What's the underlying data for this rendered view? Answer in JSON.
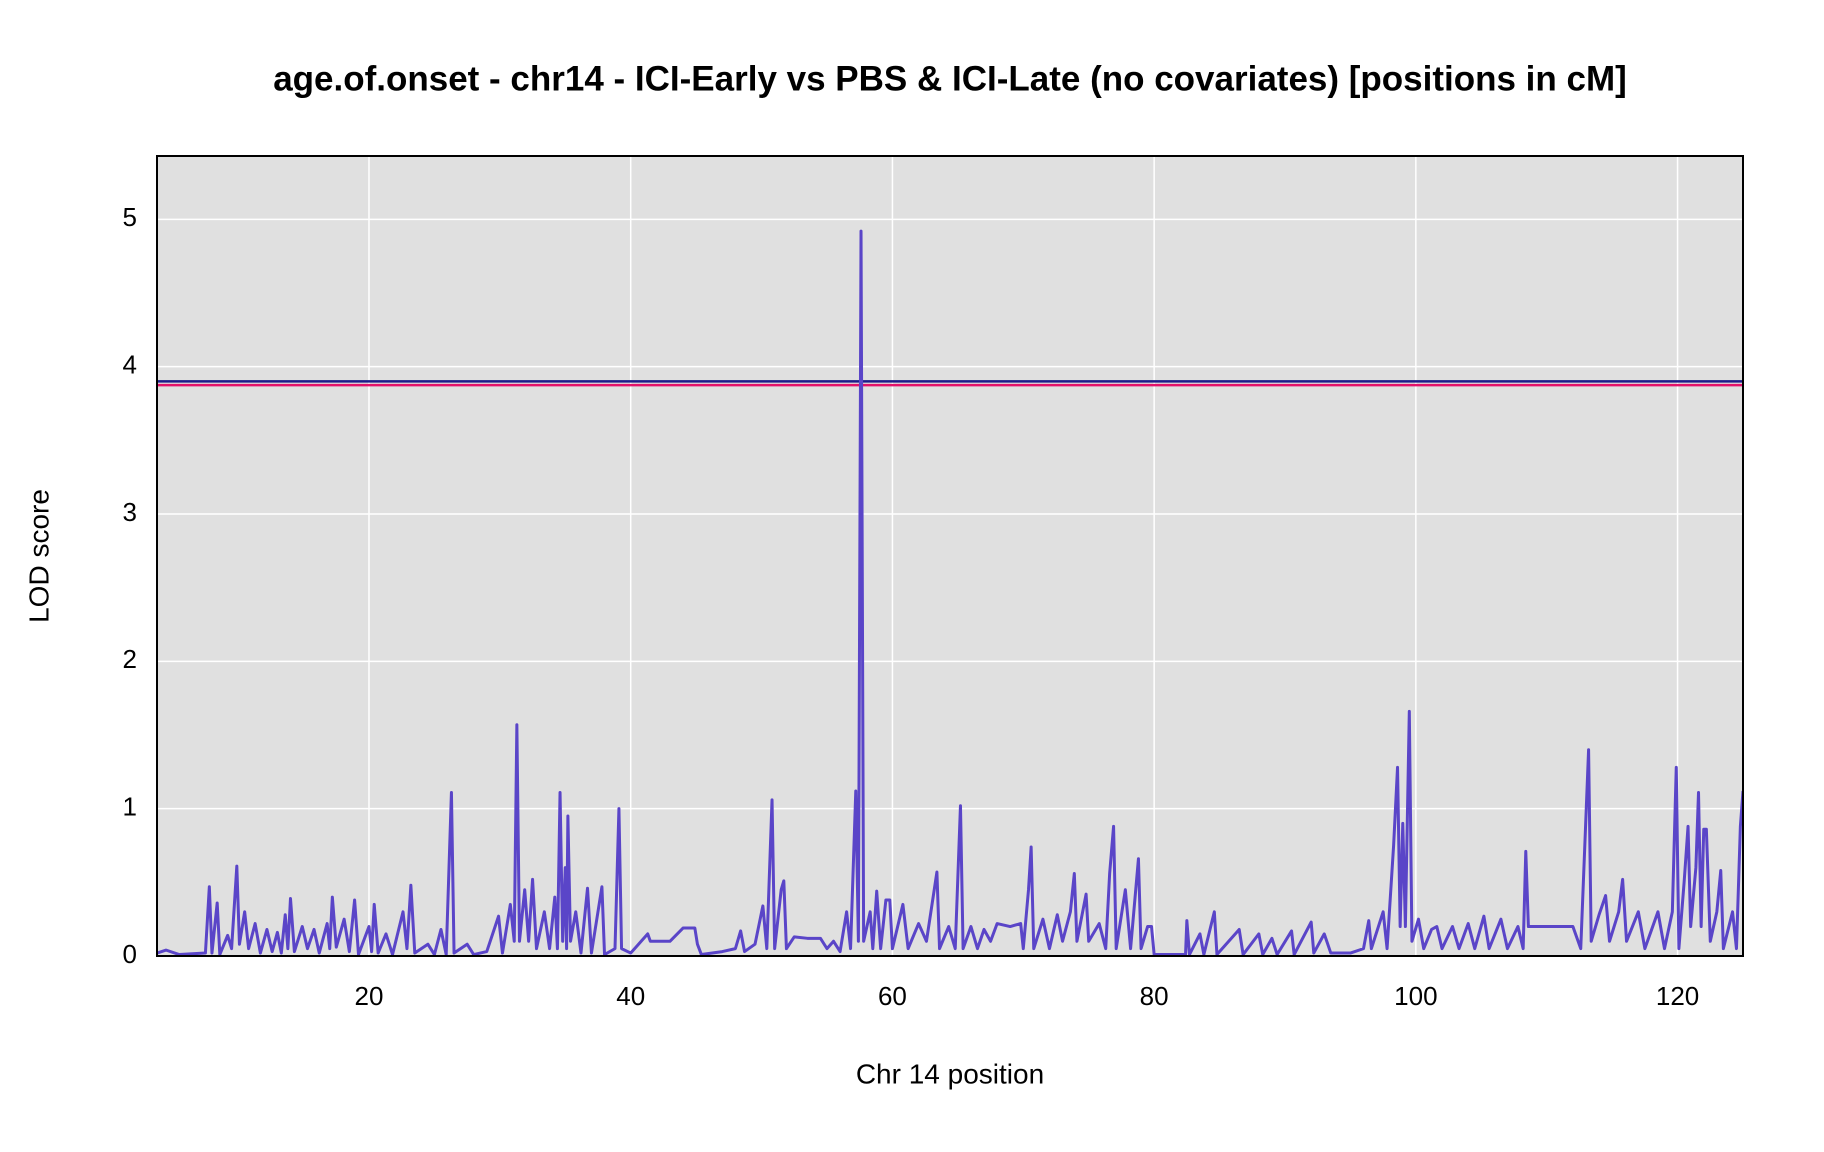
{
  "chart_data": {
    "type": "line",
    "title": "age.of.onset - chr14 - ICI-Early vs PBS & ICI-Late (no covariates) [positions in cM]",
    "x_label": "Chr 14 position",
    "y_label": "LOD score",
    "xlim": [
      3.8,
      125
    ],
    "ylim": [
      0,
      5.43
    ],
    "xticks": [
      20,
      40,
      60,
      80,
      100,
      120
    ],
    "yticks": [
      0,
      1,
      2,
      3,
      4,
      5
    ],
    "grid": true,
    "background": "#e0e0e0",
    "thresholds": [
      {
        "value": 3.9,
        "color": "#1c1c8a"
      },
      {
        "value": 3.875,
        "color": "#e3126a"
      }
    ],
    "x": [
      3.8,
      4.5,
      5.5,
      7.5,
      7.8,
      8.0,
      8.4,
      8.6,
      9.2,
      9.5,
      9.9,
      10.1,
      10.5,
      10.8,
      11.3,
      11.7,
      12.2,
      12.6,
      13.0,
      13.3,
      13.6,
      13.8,
      14.0,
      14.3,
      14.9,
      15.3,
      15.8,
      16.2,
      16.8,
      17.0,
      17.2,
      17.5,
      18.1,
      18.5,
      18.9,
      19.2,
      20.0,
      20.2,
      20.4,
      20.7,
      21.3,
      21.8,
      22.6,
      22.9,
      23.2,
      23.5,
      24.5,
      25.0,
      25.5,
      25.9,
      26.3,
      26.5,
      27.5,
      28.0,
      29.0,
      29.9,
      30.2,
      30.8,
      31.1,
      31.3,
      31.5,
      31.9,
      32.2,
      32.5,
      32.8,
      33.4,
      33.8,
      34.2,
      34.4,
      34.6,
      34.8,
      35.0,
      35.1,
      35.2,
      35.4,
      35.8,
      36.2,
      36.7,
      37.0,
      37.8,
      38.0,
      38.8,
      39.1,
      39.3,
      40.0,
      40.8,
      41.3,
      41.5,
      43.0,
      44.0,
      44.9,
      45.1,
      45.4,
      47.0,
      48.0,
      48.4,
      48.7,
      49.5,
      50.1,
      50.4,
      50.8,
      51.0,
      51.5,
      51.7,
      51.9,
      52.5,
      53.5,
      54.5,
      55.0,
      55.5,
      56.0,
      56.5,
      56.8,
      57.2,
      57.4,
      57.6,
      57.8,
      58.3,
      58.5,
      58.8,
      59.1,
      59.5,
      59.8,
      60.0,
      60.8,
      61.2,
      62.0,
      62.6,
      63.4,
      63.6,
      64.3,
      64.8,
      65.2,
      65.4,
      66.0,
      66.5,
      67.0,
      67.5,
      68.0,
      69.0,
      69.8,
      70.0,
      70.4,
      70.6,
      70.8,
      71.5,
      72.0,
      72.6,
      73.0,
      73.6,
      73.9,
      74.1,
      74.8,
      75.0,
      75.8,
      76.3,
      76.6,
      76.9,
      77.1,
      77.8,
      78.2,
      78.8,
      79.0,
      79.5,
      79.8,
      80.0,
      82.4,
      82.5,
      82.7,
      83.5,
      83.8,
      84.6,
      84.8,
      86.5,
      86.8,
      88.0,
      88.3,
      89.0,
      89.4,
      90.5,
      90.7,
      92.0,
      92.2,
      93.0,
      93.5,
      95.0,
      96.0,
      96.4,
      96.6,
      97.5,
      97.8,
      98.3,
      98.6,
      98.8,
      99.0,
      99.2,
      99.5,
      99.7,
      100.2,
      100.6,
      101.2,
      101.6,
      102.0,
      102.8,
      103.3,
      104.0,
      104.5,
      105.2,
      105.6,
      106.5,
      107.0,
      107.8,
      108.2,
      108.4,
      108.6,
      112.0,
      112.6,
      113.2,
      113.4,
      114.0,
      114.5,
      114.8,
      115.5,
      115.8,
      116.1,
      117.0,
      117.5,
      118.5,
      119.0,
      119.6,
      119.9,
      120.1,
      120.5,
      120.8,
      121.0,
      121.4,
      121.6,
      121.8,
      122.0,
      122.2,
      122.5,
      123.0,
      123.3,
      123.5,
      124.2,
      124.5,
      124.8,
      125.0
    ],
    "series": [
      {
        "name": "LOD",
        "color": "#5a45c8",
        "values": [
          0.02,
          0.04,
          0.01,
          0.02,
          0.47,
          0.02,
          0.36,
          0.01,
          0.14,
          0.05,
          0.61,
          0.08,
          0.3,
          0.05,
          0.22,
          0.02,
          0.18,
          0.03,
          0.16,
          0.02,
          0.28,
          0.05,
          0.39,
          0.03,
          0.2,
          0.05,
          0.18,
          0.02,
          0.22,
          0.05,
          0.4,
          0.06,
          0.25,
          0.03,
          0.38,
          0.01,
          0.2,
          0.03,
          0.35,
          0.02,
          0.15,
          0.01,
          0.3,
          0.05,
          0.48,
          0.02,
          0.08,
          0.01,
          0.18,
          0.01,
          1.11,
          0.02,
          0.08,
          0.01,
          0.03,
          0.27,
          0.02,
          0.35,
          0.1,
          1.57,
          0.1,
          0.45,
          0.1,
          0.52,
          0.05,
          0.3,
          0.05,
          0.4,
          0.05,
          1.11,
          0.1,
          0.6,
          0.05,
          0.95,
          0.1,
          0.3,
          0.02,
          0.46,
          0.02,
          0.47,
          0.01,
          0.05,
          1.0,
          0.05,
          0.02,
          0.1,
          0.15,
          0.1,
          0.1,
          0.19,
          0.19,
          0.08,
          0.01,
          0.03,
          0.05,
          0.17,
          0.03,
          0.08,
          0.34,
          0.05,
          1.06,
          0.05,
          0.45,
          0.51,
          0.05,
          0.13,
          0.12,
          0.12,
          0.05,
          0.1,
          0.03,
          0.3,
          0.05,
          1.12,
          0.1,
          4.92,
          0.1,
          0.3,
          0.05,
          0.44,
          0.05,
          0.38,
          0.38,
          0.05,
          0.35,
          0.05,
          0.22,
          0.1,
          0.57,
          0.05,
          0.2,
          0.05,
          1.02,
          0.05,
          0.2,
          0.05,
          0.18,
          0.1,
          0.22,
          0.2,
          0.22,
          0.05,
          0.45,
          0.74,
          0.05,
          0.25,
          0.05,
          0.28,
          0.1,
          0.3,
          0.56,
          0.1,
          0.42,
          0.1,
          0.22,
          0.05,
          0.56,
          0.88,
          0.05,
          0.45,
          0.05,
          0.66,
          0.05,
          0.2,
          0.2,
          0.01,
          0.01,
          0.24,
          0.01,
          0.15,
          0.01,
          0.3,
          0.01,
          0.18,
          0.01,
          0.15,
          0.01,
          0.12,
          0.01,
          0.17,
          0.01,
          0.23,
          0.02,
          0.15,
          0.02,
          0.02,
          0.05,
          0.24,
          0.05,
          0.3,
          0.05,
          0.75,
          1.28,
          0.2,
          0.9,
          0.2,
          1.66,
          0.1,
          0.25,
          0.05,
          0.18,
          0.2,
          0.05,
          0.2,
          0.05,
          0.22,
          0.05,
          0.27,
          0.05,
          0.25,
          0.05,
          0.2,
          0.05,
          0.71,
          0.2,
          0.2,
          0.05,
          1.4,
          0.1,
          0.28,
          0.41,
          0.1,
          0.3,
          0.52,
          0.1,
          0.3,
          0.05,
          0.3,
          0.05,
          0.3,
          1.28,
          0.05,
          0.5,
          0.88,
          0.2,
          0.6,
          1.11,
          0.2,
          0.86,
          0.86,
          0.1,
          0.3,
          0.58,
          0.05,
          0.3,
          0.05,
          0.88,
          1.12
        ]
      }
    ]
  }
}
